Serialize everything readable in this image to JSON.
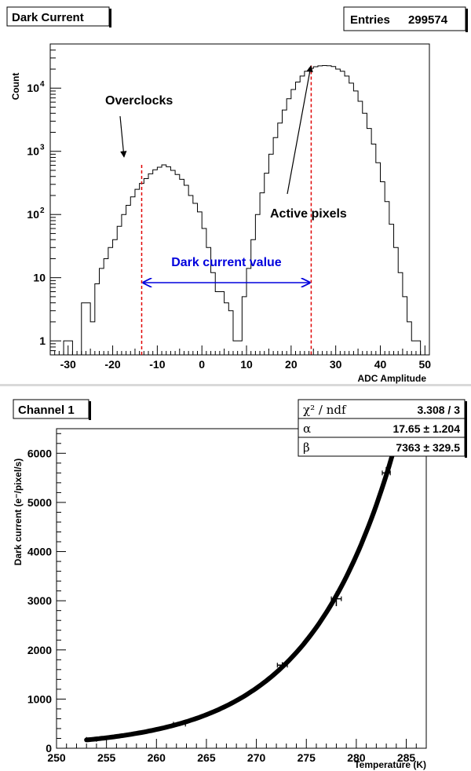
{
  "chart_data": [
    {
      "type": "histogram",
      "title": "Dark Current",
      "stats": {
        "label": "Entries",
        "value": "299574"
      },
      "xlabel": "ADC Amplitude",
      "ylabel": "Count",
      "xlim": [
        -34,
        51
      ],
      "ylim": [
        0.6,
        50000
      ],
      "yscale": "log",
      "x_ticks": [
        -30,
        -20,
        -10,
        0,
        10,
        20,
        30,
        40,
        50
      ],
      "y_ticks": [
        {
          "value": 1,
          "label": "1"
        },
        {
          "value": 10,
          "label": "10"
        },
        {
          "value": 100,
          "label": "10",
          "exp": "2"
        },
        {
          "value": 1000,
          "label": "10",
          "exp": "3"
        },
        {
          "value": 10000,
          "label": "10",
          "exp": "4"
        }
      ],
      "bin_width": 1,
      "bins_x_start": -31,
      "counts": [
        1,
        1,
        0,
        0,
        4,
        4,
        2,
        8,
        14,
        20,
        30,
        40,
        65,
        100,
        140,
        190,
        250,
        310,
        370,
        440,
        510,
        560,
        610,
        570,
        500,
        430,
        360,
        290,
        200,
        150,
        110,
        60,
        30,
        12,
        6,
        6,
        4,
        3,
        1,
        1,
        5,
        14,
        40,
        100,
        220,
        450,
        900,
        1650,
        2800,
        4500,
        6800,
        9500,
        12500,
        15500,
        18500,
        20500,
        21800,
        22500,
        22800,
        22600,
        22000,
        20000,
        18500,
        15500,
        12000,
        9000,
        6200,
        4000,
        2300,
        1300,
        660,
        330,
        160,
        70,
        30,
        12,
        5,
        2,
        1,
        1
      ],
      "annotations": {
        "overclocks": "Overclocks",
        "active_pixels": "Active pixels",
        "dark_current_value": "Dark current value"
      },
      "markers": {
        "overclock_peak_x": -13.5,
        "active_peak_x": 24.5
      }
    },
    {
      "type": "scatter",
      "title": "Channel 1",
      "xlabel": "Temperature (K)",
      "ylabel": "Dark current (e⁻/pixel/s)",
      "xlim": [
        250,
        287
      ],
      "ylim": [
        0,
        6500
      ],
      "x_ticks": [
        250,
        255,
        260,
        265,
        270,
        275,
        280,
        285
      ],
      "y_ticks": [
        0,
        1000,
        2000,
        3000,
        4000,
        5000,
        6000
      ],
      "points": [
        {
          "x": 253.5,
          "y": 180,
          "xerr": 0.5,
          "yerr": 40
        },
        {
          "x": 262.3,
          "y": 490,
          "xerr": 0.6,
          "yerr": 40
        },
        {
          "x": 272.6,
          "y": 1690,
          "xerr": 0.5,
          "yerr": 60
        },
        {
          "x": 278.0,
          "y": 3040,
          "xerr": 0.5,
          "yerr": 150
        },
        {
          "x": 283.0,
          "y": 5600,
          "xerr": 0.4,
          "yerr": 120
        }
      ],
      "fit": {
        "x_range": [
          253,
          284
        ],
        "stats": [
          {
            "label": "χ² / ndf",
            "value": "3.308 / 3"
          },
          {
            "label": "α",
            "value": "17.65 ± 1.204"
          },
          {
            "label": "β",
            "value": "7363 ± 329.5"
          }
        ]
      }
    }
  ]
}
